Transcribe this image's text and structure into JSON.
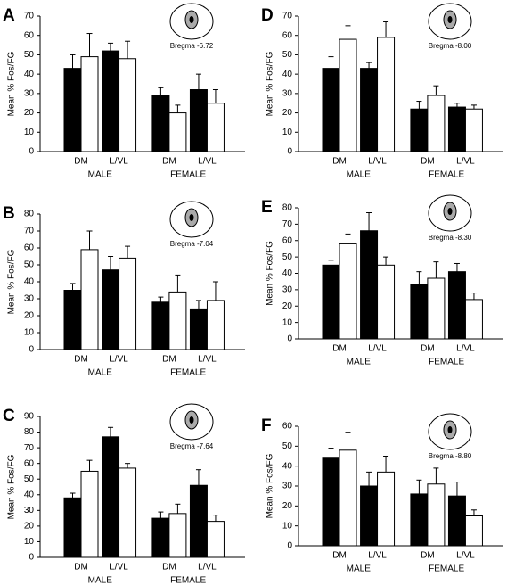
{
  "chart_data": [
    {
      "type": "bar",
      "panel": "A",
      "annotation": "Bregma -6.72",
      "y_label": "Mean % Fos/FG",
      "categories": [
        "DM",
        "L/VL",
        "DM",
        "L/VL"
      ],
      "groups": [
        "MALE",
        "FEMALE"
      ],
      "series": [
        {
          "color": "#000000",
          "values": [
            43,
            52,
            29,
            32
          ],
          "errors": [
            7,
            4,
            4,
            8
          ]
        },
        {
          "color": "#ffffff",
          "values": [
            49,
            48,
            20,
            25
          ],
          "errors": [
            12,
            9,
            4,
            7
          ]
        }
      ],
      "ylim": [
        0,
        70
      ],
      "yticks": [
        0,
        10,
        20,
        30,
        40,
        50,
        60,
        70
      ]
    },
    {
      "type": "bar",
      "panel": "B",
      "annotation": "Bregma -7.04",
      "y_label": "Mean % Fos/FG",
      "categories": [
        "DM",
        "L/VL",
        "DM",
        "L/VL"
      ],
      "groups": [
        "MALE",
        "FEMALE"
      ],
      "series": [
        {
          "color": "#000000",
          "values": [
            35,
            47,
            28,
            24
          ],
          "errors": [
            4,
            8,
            3,
            5
          ]
        },
        {
          "color": "#ffffff",
          "values": [
            59,
            54,
            34,
            29
          ],
          "errors": [
            11,
            7,
            10,
            11
          ]
        }
      ],
      "ylim": [
        0,
        80
      ],
      "yticks": [
        0,
        10,
        20,
        30,
        40,
        50,
        60,
        70,
        80
      ]
    },
    {
      "type": "bar",
      "panel": "C",
      "annotation": "Bregma -7.64",
      "y_label": "Mean % Fos/FG",
      "categories": [
        "DM",
        "L/VL",
        "DM",
        "L/VL"
      ],
      "groups": [
        "MALE",
        "FEMALE"
      ],
      "series": [
        {
          "color": "#000000",
          "values": [
            38,
            77,
            25,
            46
          ],
          "errors": [
            3,
            6,
            4,
            10
          ]
        },
        {
          "color": "#ffffff",
          "values": [
            55,
            57,
            28,
            23
          ],
          "errors": [
            7,
            3,
            6,
            4
          ]
        }
      ],
      "ylim": [
        0,
        90
      ],
      "yticks": [
        0,
        10,
        20,
        30,
        40,
        50,
        60,
        70,
        80,
        90
      ]
    },
    {
      "type": "bar",
      "panel": "D",
      "annotation": "Bregma -8.00",
      "y_label": "Mean % Fos/FG",
      "categories": [
        "DM",
        "L/VL",
        "DM",
        "L/VL"
      ],
      "groups": [
        "MALE",
        "FEMALE"
      ],
      "series": [
        {
          "color": "#000000",
          "values": [
            43,
            43,
            22,
            23
          ],
          "errors": [
            6,
            3,
            4,
            2
          ]
        },
        {
          "color": "#ffffff",
          "values": [
            58,
            59,
            29,
            22
          ],
          "errors": [
            7,
            8,
            5,
            2
          ]
        }
      ],
      "ylim": [
        0,
        70
      ],
      "yticks": [
        0,
        10,
        20,
        30,
        40,
        50,
        60,
        70
      ]
    },
    {
      "type": "bar",
      "panel": "E",
      "annotation": "Bregma -8.30",
      "y_label": "Mean % Fos/FG",
      "categories": [
        "DM",
        "L/VL",
        "DM",
        "L/VL"
      ],
      "groups": [
        "MALE",
        "FEMALE"
      ],
      "series": [
        {
          "color": "#000000",
          "values": [
            45,
            66,
            33,
            41
          ],
          "errors": [
            3,
            11,
            8,
            5
          ]
        },
        {
          "color": "#ffffff",
          "values": [
            58,
            45,
            37,
            24
          ],
          "errors": [
            6,
            5,
            10,
            4
          ]
        }
      ],
      "ylim": [
        0,
        80
      ],
      "yticks": [
        0,
        10,
        20,
        30,
        40,
        50,
        60,
        70,
        80
      ]
    },
    {
      "type": "bar",
      "panel": "F",
      "annotation": "Bregma -8.80",
      "y_label": "Mean % Fos/FG",
      "categories": [
        "DM",
        "L/VL",
        "DM",
        "L/VL"
      ],
      "groups": [
        "MALE",
        "FEMALE"
      ],
      "series": [
        {
          "color": "#000000",
          "values": [
            44,
            30,
            26,
            25
          ],
          "errors": [
            5,
            7,
            7,
            7
          ]
        },
        {
          "color": "#ffffff",
          "values": [
            48,
            37,
            31,
            15
          ],
          "errors": [
            9,
            8,
            8,
            3
          ]
        }
      ],
      "ylim": [
        0,
        60
      ],
      "yticks": [
        0,
        10,
        20,
        30,
        40,
        50,
        60
      ]
    }
  ]
}
